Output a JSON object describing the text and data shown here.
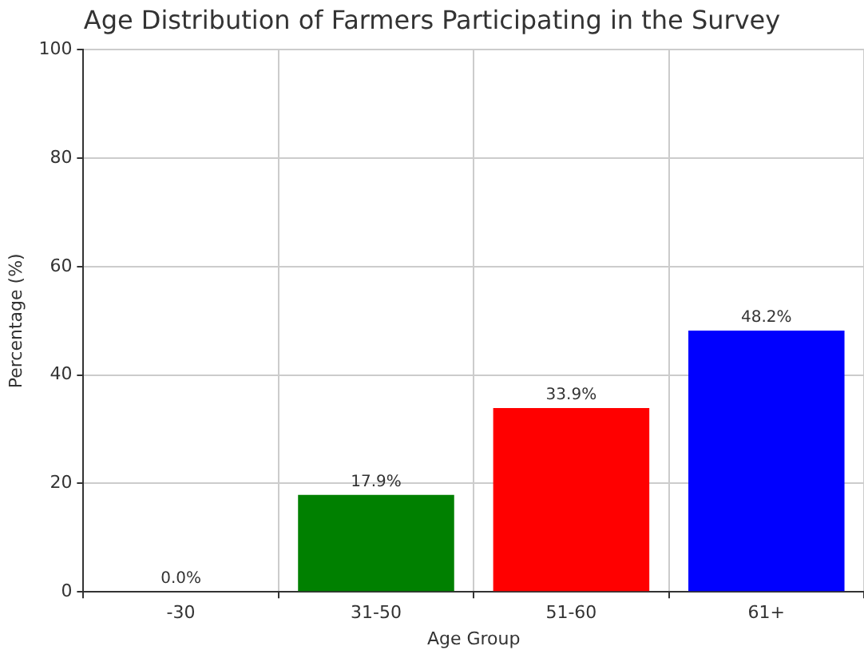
{
  "chart_data": {
    "type": "bar",
    "title": "Age Distribution of Farmers Participating in the Survey",
    "xlabel": "Age Group",
    "ylabel": "Percentage (%)",
    "categories": [
      "-30",
      "31-50",
      "51-60",
      "61+"
    ],
    "values": [
      0.0,
      17.9,
      33.9,
      48.2
    ],
    "colors": [
      "#ffff00",
      "#008000",
      "#ff0000",
      "#0000ff"
    ],
    "value_labels": [
      "0.0%",
      "17.9%",
      "33.9%",
      "48.2%"
    ],
    "ylim": [
      0,
      100
    ],
    "yticks": [
      0,
      20,
      40,
      60,
      80,
      100
    ],
    "grid": true
  }
}
